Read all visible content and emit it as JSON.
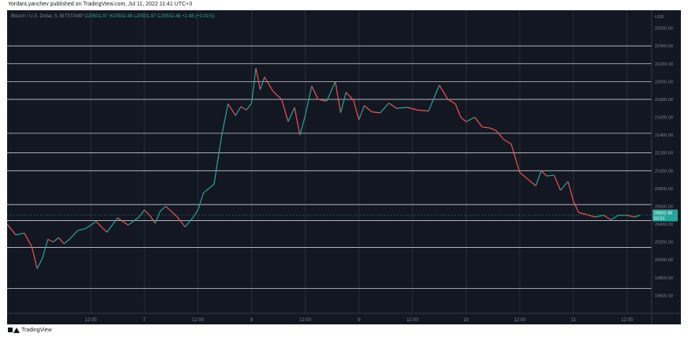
{
  "header": {
    "text": "YordanLyanchev published on TradingView.com, Jul 11, 2022 11:41 UTC+3"
  },
  "legend": {
    "title": "Bitcoin / U.S. Dollar, 5, BITSTAMP",
    "o": "O20501.97",
    "h": "H20502.48",
    "l": "L20501.97",
    "c": "C20502.48",
    "chg": "+2.48 (+0.01%)"
  },
  "footer": {
    "brand": "TradingView"
  },
  "colors": {
    "background": "#131722",
    "up": "#26a69a",
    "down": "#ef5350",
    "grid": "#2a2e39",
    "label": "#26a69a"
  },
  "chart_data": {
    "type": "line",
    "currency": "USD",
    "ylim": [
      19400,
      22800
    ],
    "y_ticks": [
      19600,
      19800,
      20000,
      20200,
      20400,
      20600,
      20800,
      21000,
      21200,
      21400,
      21600,
      21800,
      22000,
      22200,
      22400,
      22600
    ],
    "y_tick_labels": [
      "19600.00",
      "19800.00",
      "20000.00",
      "20200.00",
      "20400.00",
      "20600.00",
      "20800.00",
      "21000.00",
      "21200.00",
      "21400.00",
      "21600.00",
      "21800.00",
      "22000.00",
      "22200.00",
      "22400.00",
      "22600.00"
    ],
    "x_tick_labels": [
      "12:00",
      "7",
      "12:00",
      "8",
      "12:00",
      "9",
      "12:00",
      "10",
      "12:00",
      "11",
      "12:00"
    ],
    "x_ticks": [
      0.5,
      1,
      1.5,
      2,
      2.5,
      3,
      3.5,
      4,
      4.5,
      5,
      5.5
    ],
    "xlim": [
      -0.28,
      5.73
    ],
    "horizontal_levels": [
      19680,
      20140,
      20440,
      20620,
      21000,
      21200,
      21420,
      21800,
      22000,
      22200,
      22400
    ],
    "last_price": {
      "value": 20502.48,
      "label": "20502.48",
      "countdown": "03:51"
    },
    "series": [
      {
        "x": [
          -0.28,
          -0.2,
          -0.12,
          -0.05,
          0.0,
          0.05,
          0.1,
          0.15,
          0.2,
          0.25,
          0.3,
          0.38,
          0.45,
          0.55,
          0.65,
          0.75,
          0.85,
          0.95,
          1.0,
          1.05,
          1.1,
          1.15,
          1.2,
          1.3,
          1.38,
          1.45,
          1.5,
          1.55,
          1.65,
          1.72,
          1.78,
          1.85,
          1.9,
          1.95,
          2.0,
          2.04,
          2.08,
          2.12,
          2.2,
          2.28,
          2.34,
          2.4,
          2.45,
          2.5,
          2.56,
          2.62,
          2.7,
          2.78,
          2.83,
          2.88,
          2.95,
          3.0,
          3.05,
          3.12,
          3.2,
          3.28,
          3.35,
          3.45,
          3.55,
          3.65,
          3.75,
          3.83,
          3.9,
          3.95,
          4.0,
          4.08,
          4.15,
          4.22,
          4.28,
          4.35,
          4.42,
          4.5,
          4.58,
          4.65,
          4.7,
          4.75,
          4.82,
          4.88,
          4.95,
          5.0,
          5.05,
          5.12,
          5.2,
          5.28,
          5.35,
          5.42,
          5.5,
          5.57,
          5.62
        ],
        "y": [
          20400,
          20280,
          20300,
          20150,
          19900,
          20020,
          20230,
          20200,
          20250,
          20180,
          20230,
          20330,
          20350,
          20430,
          20310,
          20470,
          20390,
          20480,
          20560,
          20500,
          20410,
          20550,
          20600,
          20490,
          20370,
          20470,
          20560,
          20750,
          20850,
          21390,
          21750,
          21620,
          21720,
          21680,
          21760,
          22150,
          21910,
          22050,
          21890,
          21800,
          21550,
          21710,
          21400,
          21620,
          21950,
          21800,
          21780,
          22000,
          21650,
          21880,
          21790,
          21570,
          21730,
          21660,
          21650,
          21760,
          21700,
          21710,
          21680,
          21670,
          21960,
          21800,
          21750,
          21600,
          21550,
          21600,
          21490,
          21480,
          21450,
          21350,
          21300,
          20980,
          20900,
          20830,
          21000,
          20940,
          20950,
          20780,
          20880,
          20660,
          20530,
          20510,
          20480,
          20500,
          20450,
          20500,
          20500,
          20480,
          20500
        ]
      }
    ]
  }
}
